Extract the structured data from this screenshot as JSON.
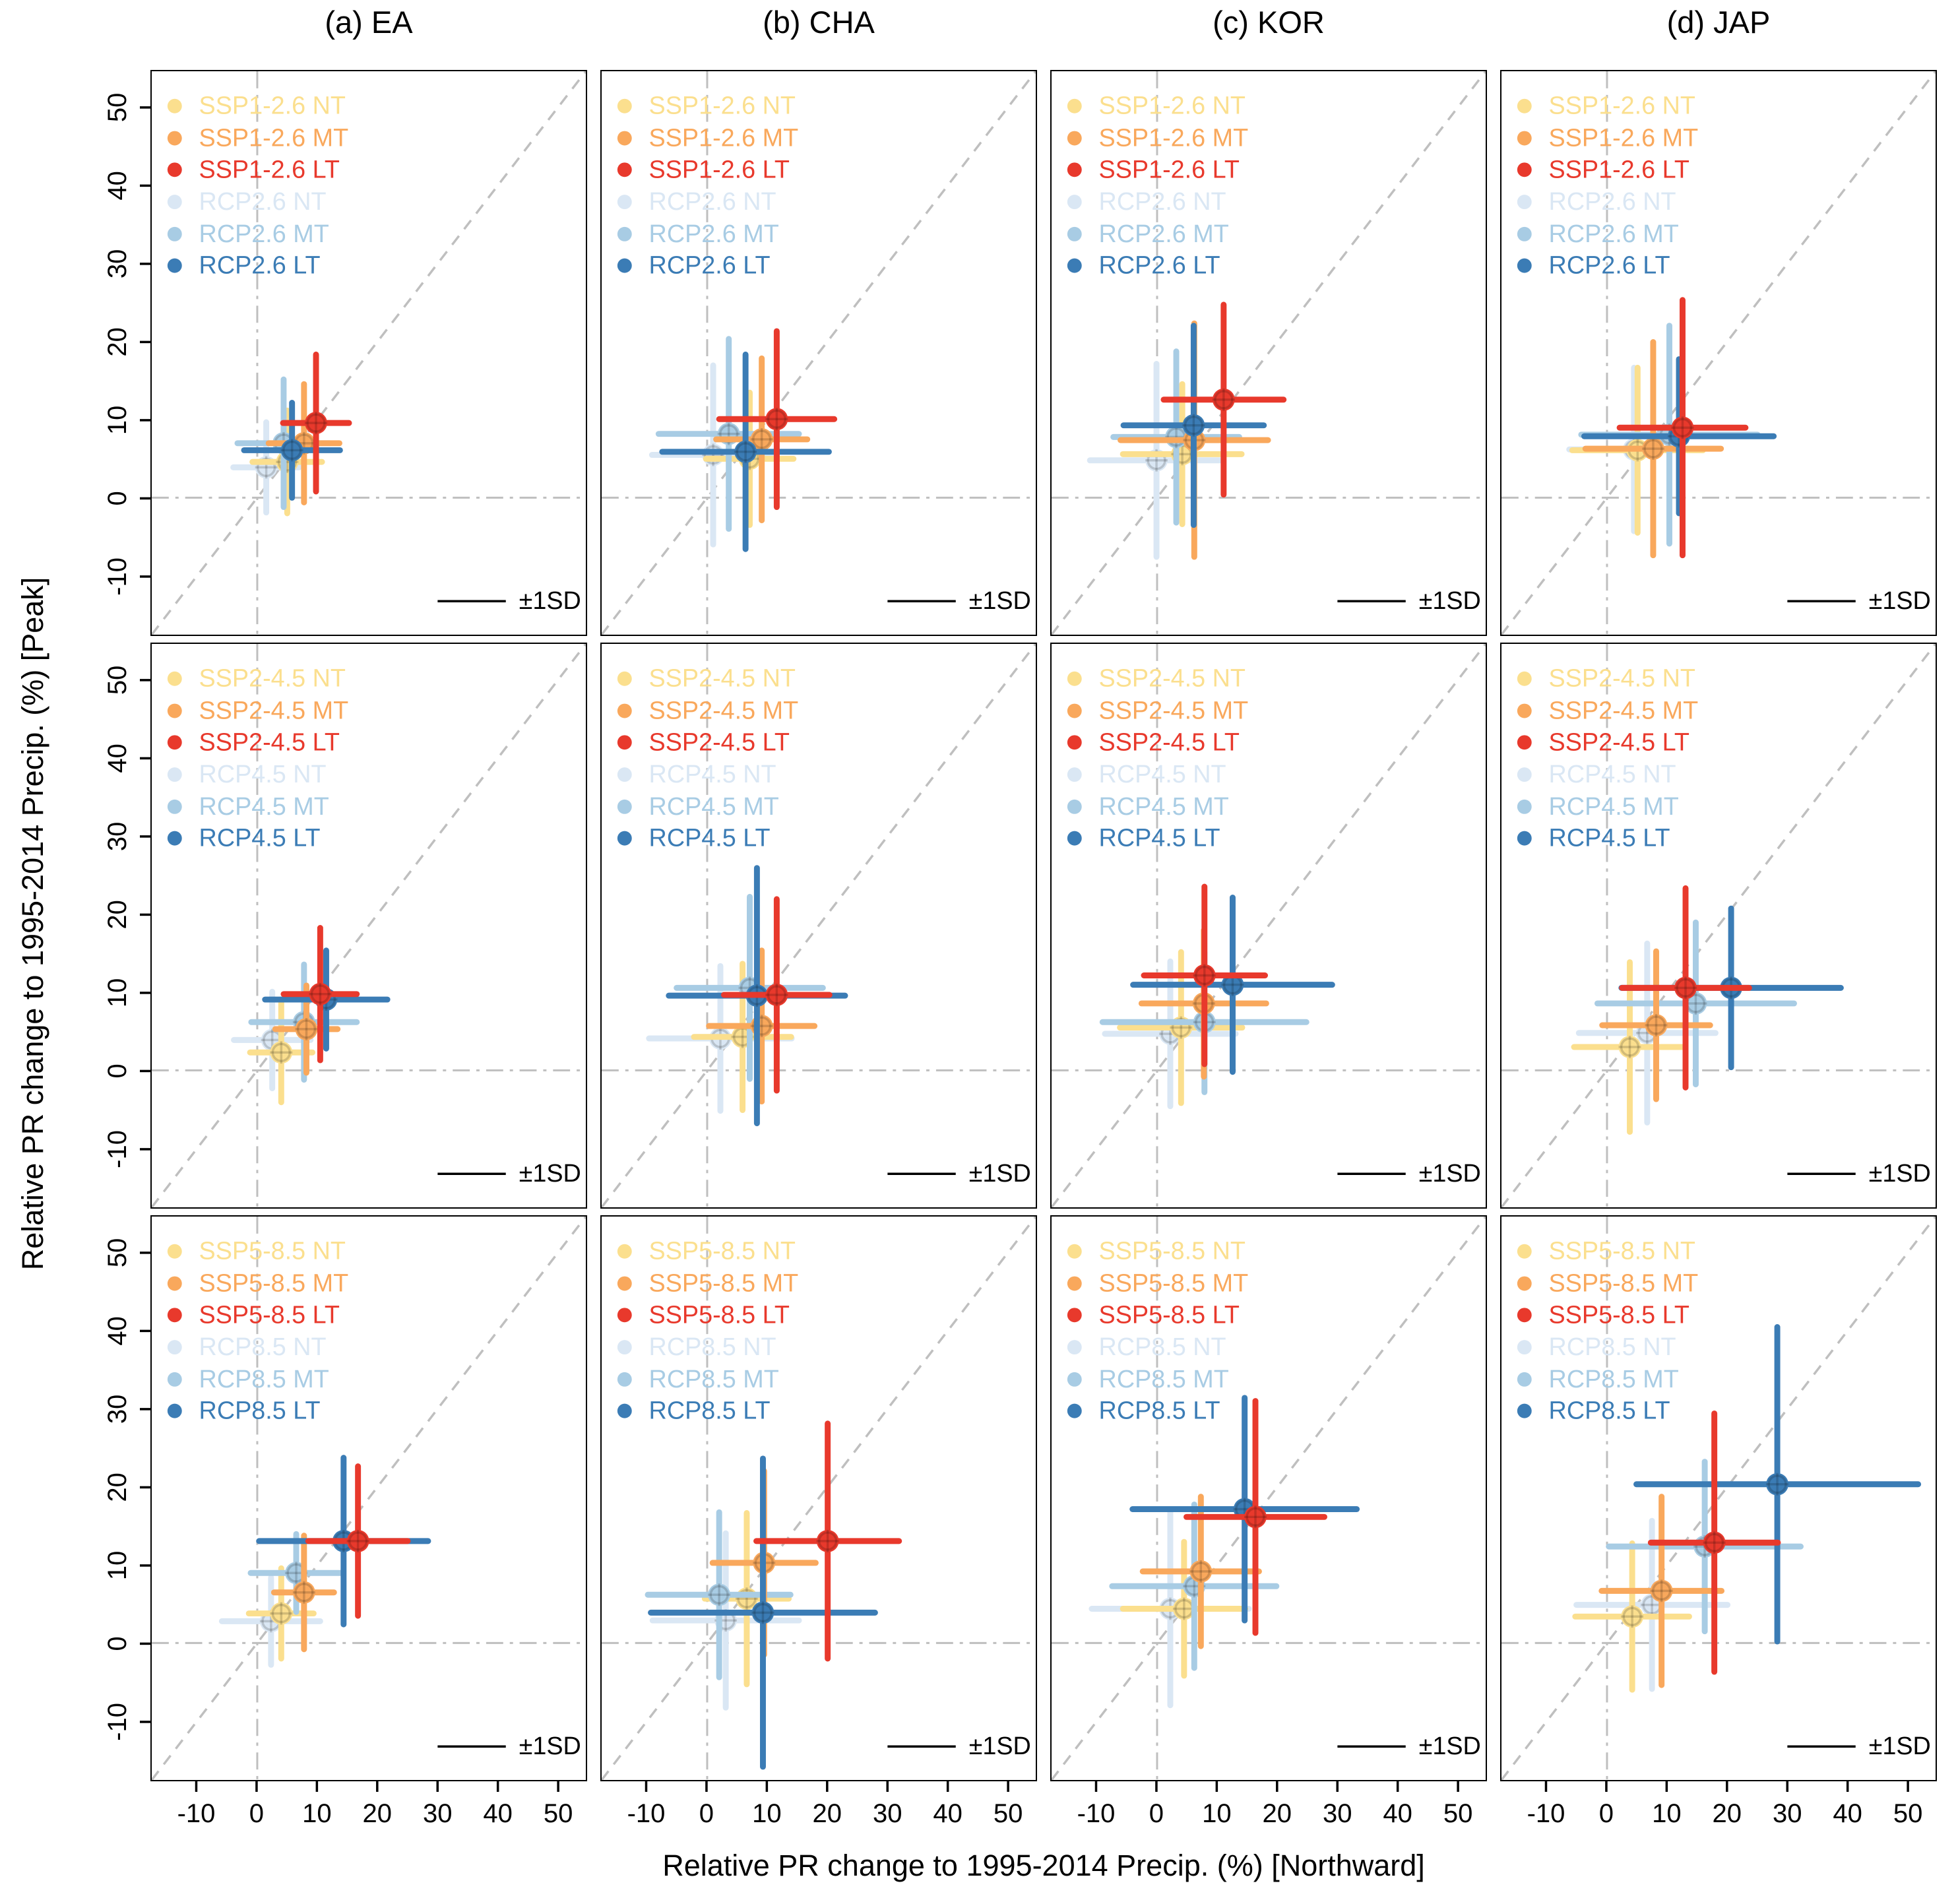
{
  "xlabel": "Relative PR change to 1995-2014 Precip. (%) [Northward]",
  "ylabel": "Relative PR change to 1995-2014 Precip. (%) [Peak]",
  "sd_label": "±1SD",
  "colors": {
    "ssp_nt": "#FBDF8E",
    "ssp_mt": "#F9A85C",
    "ssp_lt": "#E8392C",
    "rcp_nt": "#DAE7F4",
    "rcp_mt": "#A8CCE4",
    "rcp_lt": "#3B7CB5",
    "ref_line": "#BFBFBF",
    "diag_line": "#BFBFBF",
    "axis": "#000000"
  },
  "chart_data": {
    "type": "scatter",
    "marker": "circle-with-cross",
    "error_bars": "±1SD in x and y",
    "grid": "dash-dot zero lines + 1:1 dashed diagonal per panel",
    "axis_range": [
      -17.6,
      54.8
    ],
    "ticks": [
      -10,
      0,
      10,
      20,
      30,
      40,
      50
    ],
    "tick_labels": [
      "-10",
      "0",
      "10",
      "20",
      "30",
      "40",
      "50"
    ],
    "legend_position": "top-left of each panel",
    "columns": [
      "EA",
      "CHA",
      "KOR",
      "JAP"
    ],
    "column_titles": [
      "(a) EA",
      "(b) CHA",
      "(c) KOR",
      "(d) JAP"
    ],
    "draw_order": [
      "rcp_nt",
      "ssp_nt",
      "rcp_mt",
      "ssp_mt",
      "rcp_lt",
      "ssp_lt"
    ],
    "legend_order": [
      "ssp_nt",
      "ssp_mt",
      "ssp_lt",
      "rcp_nt",
      "rcp_mt",
      "rcp_lt"
    ],
    "value_format": "[x, y, sd_x, sd_y] in % change",
    "rows": [
      {
        "scenario_ssp": "SSP1-2.6",
        "scenario_rcp": "RCP2.6",
        "legend": {
          "ssp_nt": "SSP1-2.6 NT",
          "ssp_mt": "SSP1-2.6 MT",
          "ssp_lt": "SSP1-2.6 LT",
          "rcp_nt": "RCP2.6 NT",
          "rcp_mt": "RCP2.6 MT",
          "rcp_lt": "RCP2.6 LT"
        },
        "panels": {
          "EA": {
            "ssp_nt": [
              5.0,
              4.6,
              5.8,
              6.6
            ],
            "ssp_mt": [
              7.8,
              7.0,
              5.9,
              7.6
            ],
            "ssp_lt": [
              9.8,
              9.6,
              5.5,
              8.8
            ],
            "rcp_nt": [
              1.5,
              3.9,
              5.5,
              5.8
            ],
            "rcp_mt": [
              4.4,
              7.0,
              7.7,
              8.2
            ],
            "rcp_lt": [
              5.8,
              6.1,
              8.0,
              6.1
            ]
          },
          "CHA": {
            "ssp_nt": [
              7.1,
              5.0,
              7.3,
              8.5
            ],
            "ssp_mt": [
              9.1,
              7.5,
              7.6,
              10.4
            ],
            "ssp_lt": [
              11.6,
              10.1,
              9.6,
              11.3
            ],
            "rcp_nt": [
              1.0,
              5.5,
              10.2,
              11.5
            ],
            "rcp_mt": [
              3.6,
              8.2,
              11.7,
              12.2
            ],
            "rcp_lt": [
              6.4,
              5.9,
              13.9,
              12.5
            ]
          },
          "KOR": {
            "ssp_nt": [
              4.2,
              5.6,
              9.9,
              9.0
            ],
            "ssp_mt": [
              6.2,
              7.4,
              12.3,
              15.0
            ],
            "ssp_lt": [
              11.1,
              12.6,
              10.0,
              12.2
            ],
            "rcp_nt": [
              -0.1,
              4.8,
              11.1,
              12.4
            ],
            "rcp_mt": [
              3.2,
              7.8,
              10.5,
              11.0
            ],
            "rcp_lt": [
              6.1,
              9.3,
              11.7,
              12.8
            ]
          },
          "JAP": {
            "ssp_nt": [
              5.1,
              6.1,
              10.9,
              10.6
            ],
            "ssp_mt": [
              7.7,
              6.3,
              11.3,
              13.7
            ],
            "ssp_lt": [
              12.6,
              9.0,
              10.5,
              16.4
            ],
            "rcp_nt": [
              4.5,
              6.2,
              10.8,
              10.5
            ],
            "rcp_mt": [
              10.4,
              8.1,
              14.7,
              14.0
            ],
            "rcp_lt": [
              12.0,
              7.9,
              15.8,
              9.9
            ]
          }
        }
      },
      {
        "scenario_ssp": "SSP2-4.5",
        "scenario_rcp": "RCP4.5",
        "legend": {
          "ssp_nt": "SSP2-4.5 NT",
          "ssp_mt": "SSP2-4.5 MT",
          "ssp_lt": "SSP2-4.5 LT",
          "rcp_nt": "RCP4.5 NT",
          "rcp_mt": "RCP4.5 MT",
          "rcp_lt": "RCP4.5 LT"
        },
        "panels": {
          "EA": {
            "ssp_nt": [
              4.0,
              2.3,
              5.2,
              6.4
            ],
            "ssp_mt": [
              8.2,
              5.3,
              5.2,
              5.6
            ],
            "ssp_lt": [
              10.5,
              9.8,
              6.1,
              8.5
            ],
            "rcp_nt": [
              2.5,
              3.9,
              6.4,
              6.2
            ],
            "rcp_mt": [
              7.8,
              6.2,
              8.8,
              7.4
            ],
            "rcp_lt": [
              11.5,
              9.1,
              10.2,
              6.3
            ]
          },
          "CHA": {
            "ssp_nt": [
              5.9,
              4.3,
              8.1,
              9.4
            ],
            "ssp_mt": [
              9.1,
              5.7,
              8.8,
              9.7
            ],
            "ssp_lt": [
              11.6,
              9.7,
              8.8,
              12.3
            ],
            "rcp_nt": [
              2.2,
              4.1,
              11.9,
              9.3
            ],
            "rcp_mt": [
              7.1,
              10.6,
              12.2,
              11.7
            ],
            "rcp_lt": [
              8.3,
              9.6,
              14.7,
              16.4
            ]
          },
          "KOR": {
            "ssp_nt": [
              4.0,
              5.5,
              10.2,
              9.7
            ],
            "ssp_mt": [
              7.8,
              8.6,
              10.4,
              9.4
            ],
            "ssp_lt": [
              7.9,
              12.2,
              10.1,
              11.4
            ],
            "rcp_nt": [
              2.2,
              4.7,
              10.9,
              9.3
            ],
            "rcp_mt": [
              7.9,
              6.2,
              17.0,
              9.0
            ],
            "rcp_lt": [
              12.6,
              11.0,
              16.6,
              11.2
            ]
          },
          "JAP": {
            "ssp_nt": [
              3.8,
              3.0,
              9.3,
              10.9
            ],
            "ssp_mt": [
              8.2,
              5.8,
              9.0,
              9.5
            ],
            "ssp_lt": [
              13.1,
              10.6,
              10.6,
              12.8
            ],
            "rcp_nt": [
              6.7,
              4.8,
              11.4,
              11.5
            ],
            "rcp_mt": [
              14.8,
              8.6,
              16.4,
              10.4
            ],
            "rcp_lt": [
              20.7,
              10.6,
              18.3,
              10.2
            ]
          }
        }
      },
      {
        "scenario_ssp": "SSP5-8.5",
        "scenario_rcp": "RCP8.5",
        "legend": {
          "ssp_nt": "SSP5-8.5 NT",
          "ssp_mt": "SSP5-8.5 MT",
          "ssp_lt": "SSP5-8.5 LT",
          "rcp_nt": "RCP8.5 NT",
          "rcp_mt": "RCP8.5 MT",
          "rcp_lt": "RCP8.5 LT"
        },
        "panels": {
          "EA": {
            "ssp_nt": [
              4.0,
              3.8,
              5.4,
              5.8
            ],
            "ssp_mt": [
              7.8,
              6.5,
              5.0,
              7.3
            ],
            "ssp_lt": [
              16.8,
              13.1,
              8.3,
              9.6
            ],
            "rcp_nt": [
              2.3,
              2.8,
              8.2,
              5.6
            ],
            "rcp_mt": [
              6.5,
              9.0,
              7.6,
              5.0
            ],
            "rcp_lt": [
              14.4,
              13.1,
              14.1,
              10.7
            ]
          },
          "CHA": {
            "ssp_nt": [
              6.6,
              5.7,
              7.0,
              11.0
            ],
            "ssp_mt": [
              9.5,
              10.3,
              8.6,
              11.8
            ],
            "ssp_lt": [
              20.1,
              13.1,
              11.9,
              15.1
            ],
            "rcp_nt": [
              3.1,
              2.9,
              12.2,
              11.2
            ],
            "rcp_mt": [
              2.0,
              6.2,
              11.9,
              10.6
            ],
            "rcp_lt": [
              9.3,
              3.9,
              18.7,
              19.8
            ]
          },
          "KOR": {
            "ssp_nt": [
              4.5,
              4.4,
              10.2,
              8.6
            ],
            "ssp_mt": [
              7.3,
              9.2,
              9.7,
              9.6
            ],
            "ssp_lt": [
              16.4,
              16.2,
              11.5,
              14.9
            ],
            "rcp_nt": [
              2.2,
              4.4,
              13.1,
              12.4
            ],
            "rcp_mt": [
              6.2,
              7.3,
              13.7,
              10.5
            ],
            "rcp_lt": [
              14.6,
              17.2,
              18.7,
              14.3
            ]
          },
          "JAP": {
            "ssp_nt": [
              4.2,
              3.4,
              9.5,
              9.4
            ],
            "ssp_mt": [
              9.1,
              6.7,
              10.0,
              12.1
            ],
            "ssp_lt": [
              17.9,
              12.9,
              10.6,
              16.6
            ],
            "rcp_nt": [
              7.5,
              4.9,
              12.6,
              10.8
            ],
            "rcp_mt": [
              16.3,
              12.4,
              16.0,
              10.9
            ],
            "rcp_lt": [
              28.4,
              20.4,
              23.5,
              20.2
            ]
          }
        }
      }
    ]
  }
}
